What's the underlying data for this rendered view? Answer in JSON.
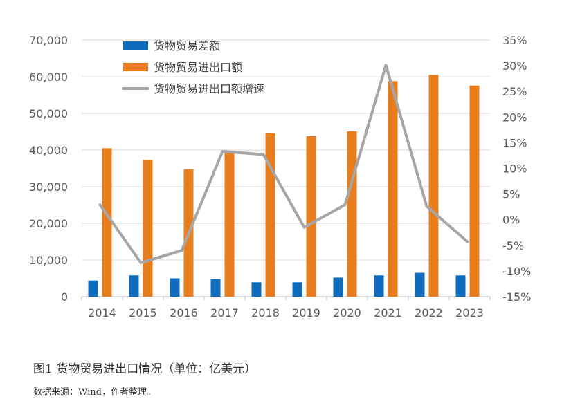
{
  "chart_data": {
    "type": "bar",
    "categories": [
      "2014",
      "2015",
      "2016",
      "2017",
      "2018",
      "2019",
      "2020",
      "2021",
      "2022",
      "2023"
    ],
    "series": [
      {
        "name": "货物贸易差额",
        "type": "bar",
        "axis": "left",
        "color": "#0F6CBD",
        "values": [
          4400,
          5800,
          5000,
          4800,
          3900,
          3900,
          5200,
          5800,
          6500,
          5800
        ]
      },
      {
        "name": "货物贸易进出口额",
        "type": "bar",
        "axis": "left",
        "color": "#E87D1E",
        "values": [
          40500,
          37300,
          34800,
          39300,
          44600,
          43800,
          45100,
          58800,
          60500,
          57600
        ]
      },
      {
        "name": "货物贸易进出口额增速",
        "type": "line",
        "axis": "right",
        "color": "#A6A6A6",
        "values": [
          2.9,
          -8.4,
          -6.0,
          13.3,
          12.7,
          -1.5,
          2.9,
          30.1,
          2.6,
          -4.3
        ]
      }
    ],
    "y_left": {
      "min": 0,
      "max": 70000,
      "step": 10000,
      "ticks": [
        "0",
        "10,000",
        "20,000",
        "30,000",
        "40,000",
        "50,000",
        "60,000",
        "70,000"
      ]
    },
    "y_right": {
      "min": -15,
      "max": 35,
      "step": 5,
      "ticks": [
        "-15%",
        "-10%",
        "-5%",
        "0%",
        "5%",
        "10%",
        "15%",
        "20%",
        "25%",
        "30%",
        "35%"
      ]
    },
    "grid": true,
    "legend_position": "top-left"
  },
  "caption": "图1 货物贸易进出口情况（单位：亿美元）",
  "source": "数据来源：Wind，作者整理。"
}
